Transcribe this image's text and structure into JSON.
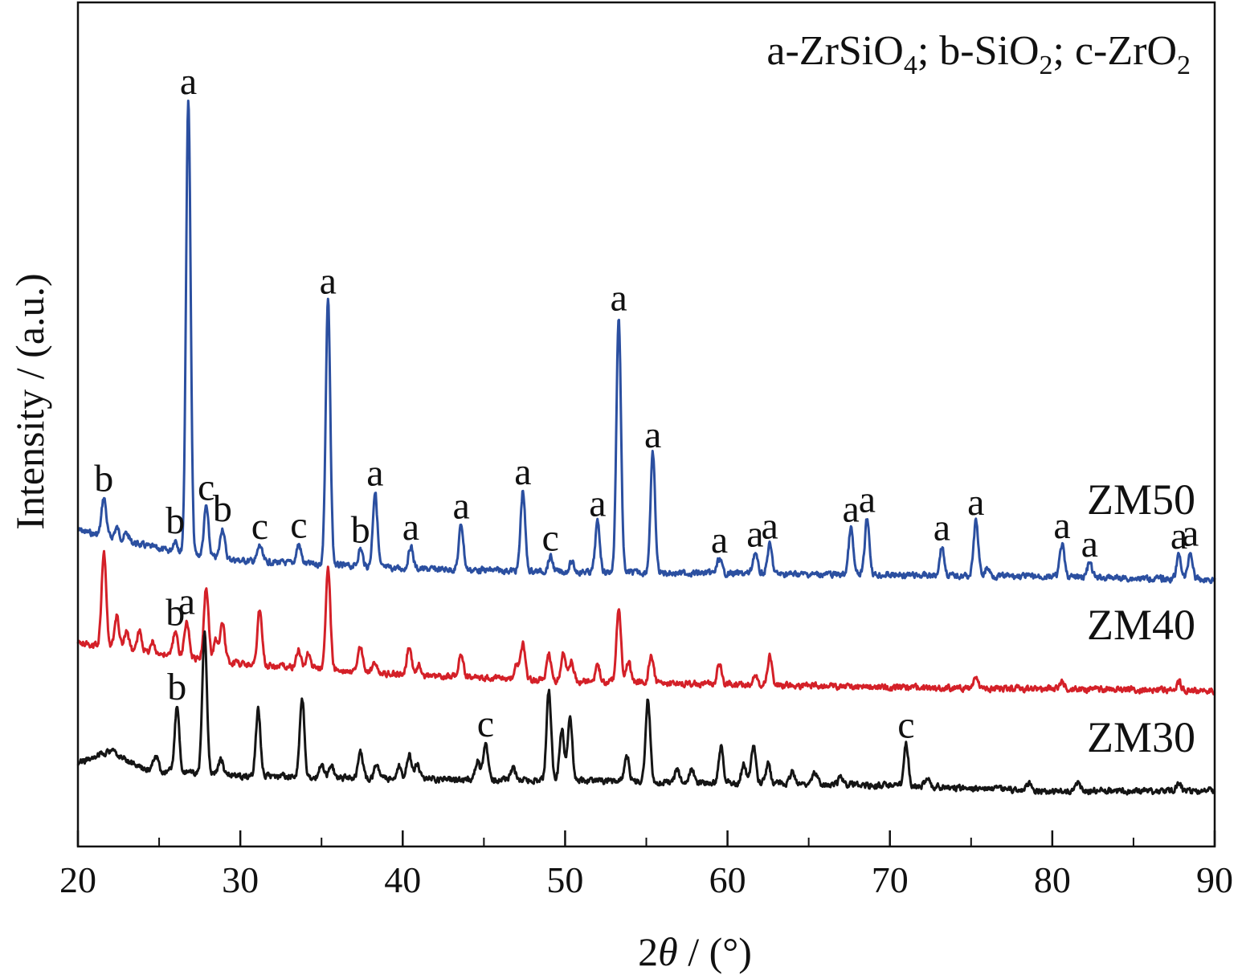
{
  "chart_data": {
    "type": "line",
    "legend_text": {
      "a_prefix": "a-ZrSiO",
      "a_sub": "4",
      "a_sep": "; ",
      "b_prefix": "b-SiO",
      "b_sub": "2",
      "b_sep": "; ",
      "c_prefix": "c-ZrO",
      "c_sub": "2"
    },
    "xlabel": {
      "prefix": "2",
      "symbol": "θ",
      "suffix": " / (°)"
    },
    "ylabel": "Intensity / (a.u.)",
    "xlim": [
      20,
      90
    ],
    "xticks": [
      20,
      30,
      40,
      50,
      60,
      70,
      80,
      90
    ],
    "xticks_minor": [
      25,
      35,
      45,
      55,
      65,
      75,
      85
    ],
    "y_ticks_shown": false,
    "grid": false,
    "series": [
      {
        "name": "ZM50",
        "color": "#2b4fa0",
        "baseline": [
          [
            20,
            660
          ],
          [
            26,
            688
          ],
          [
            30,
            698
          ],
          [
            40,
            708
          ],
          [
            50,
            712
          ],
          [
            60,
            714
          ],
          [
            70,
            716
          ],
          [
            80,
            718
          ],
          [
            90,
            722
          ]
        ],
        "peaks": [
          [
            21.6,
            48
          ],
          [
            22.4,
            14
          ],
          [
            23.0,
            10
          ],
          [
            26.0,
            16
          ],
          [
            26.8,
            565
          ],
          [
            27.9,
            62
          ],
          [
            28.9,
            38
          ],
          [
            31.2,
            20
          ],
          [
            33.6,
            24
          ],
          [
            35.4,
            330
          ],
          [
            37.4,
            22
          ],
          [
            38.3,
            94
          ],
          [
            40.5,
            28
          ],
          [
            43.6,
            56
          ],
          [
            47.4,
            100
          ],
          [
            49.1,
            18
          ],
          [
            50.4,
            12
          ],
          [
            52.0,
            62
          ],
          [
            53.3,
            318
          ],
          [
            55.4,
            148
          ],
          [
            59.5,
            18
          ],
          [
            61.7,
            26
          ],
          [
            62.6,
            36
          ],
          [
            67.6,
            58
          ],
          [
            68.6,
            70
          ],
          [
            73.2,
            36
          ],
          [
            75.3,
            68
          ],
          [
            76.0,
            10
          ],
          [
            80.6,
            40
          ],
          [
            82.3,
            18
          ],
          [
            87.8,
            30
          ],
          [
            88.5,
            34
          ]
        ],
        "peak_labels": [
          [
            21.6,
            "b"
          ],
          [
            26.0,
            "b"
          ],
          [
            26.8,
            "a"
          ],
          [
            27.9,
            "c"
          ],
          [
            28.9,
            "b"
          ],
          [
            31.2,
            "c"
          ],
          [
            33.6,
            "c"
          ],
          [
            35.4,
            "a"
          ],
          [
            37.4,
            "b"
          ],
          [
            38.3,
            "a"
          ],
          [
            40.5,
            "a"
          ],
          [
            43.6,
            "a"
          ],
          [
            47.4,
            "a"
          ],
          [
            49.1,
            "c"
          ],
          [
            52.0,
            "a"
          ],
          [
            53.3,
            "a"
          ],
          [
            55.4,
            "a"
          ],
          [
            59.5,
            "a"
          ],
          [
            61.7,
            "a"
          ],
          [
            62.6,
            "a"
          ],
          [
            67.6,
            "a"
          ],
          [
            68.6,
            "a"
          ],
          [
            73.2,
            "a"
          ],
          [
            75.3,
            "a"
          ],
          [
            80.6,
            "a"
          ],
          [
            82.3,
            "a"
          ],
          [
            87.8,
            "a"
          ],
          [
            88.5,
            "a"
          ]
        ]
      },
      {
        "name": "ZM40",
        "color": "#d42028",
        "baseline": [
          [
            20,
            800
          ],
          [
            24,
            812
          ],
          [
            30,
            826
          ],
          [
            40,
            840
          ],
          [
            50,
            848
          ],
          [
            60,
            852
          ],
          [
            70,
            856
          ],
          [
            80,
            858
          ],
          [
            90,
            860
          ]
        ],
        "peaks": [
          [
            21.6,
            118
          ],
          [
            22.4,
            40
          ],
          [
            23.0,
            22
          ],
          [
            23.8,
            26
          ],
          [
            24.6,
            14
          ],
          [
            26.0,
            30
          ],
          [
            26.7,
            46
          ],
          [
            27.9,
            90
          ],
          [
            28.5,
            26
          ],
          [
            28.9,
            48
          ],
          [
            31.2,
            70
          ],
          [
            33.6,
            22
          ],
          [
            34.2,
            18
          ],
          [
            35.4,
            128
          ],
          [
            37.4,
            32
          ],
          [
            38.3,
            14
          ],
          [
            40.4,
            36
          ],
          [
            41.0,
            14
          ],
          [
            43.6,
            28
          ],
          [
            47.0,
            16
          ],
          [
            47.4,
            44
          ],
          [
            49.0,
            32
          ],
          [
            49.9,
            36
          ],
          [
            50.4,
            24
          ],
          [
            52.0,
            20
          ],
          [
            53.3,
            90
          ],
          [
            53.9,
            26
          ],
          [
            55.3,
            34
          ],
          [
            59.5,
            26
          ],
          [
            61.7,
            14
          ],
          [
            62.6,
            36
          ],
          [
            75.3,
            14
          ],
          [
            80.6,
            10
          ],
          [
            87.8,
            10
          ]
        ],
        "peak_labels": [
          [
            26.0,
            "b"
          ],
          [
            26.7,
            "a"
          ]
        ]
      },
      {
        "name": "ZM30",
        "color": "#151515",
        "baseline": [
          [
            20,
            950
          ],
          [
            22,
            935
          ],
          [
            24,
            958
          ],
          [
            30,
            966
          ],
          [
            40,
            970
          ],
          [
            50,
            972
          ],
          [
            60,
            975
          ],
          [
            70,
            978
          ],
          [
            80,
            985
          ],
          [
            90,
            985
          ]
        ],
        "peaks": [
          [
            24.8,
            18
          ],
          [
            26.1,
            82
          ],
          [
            27.8,
            178
          ],
          [
            28.8,
            20
          ],
          [
            31.1,
            82
          ],
          [
            33.8,
            100
          ],
          [
            35.0,
            18
          ],
          [
            35.6,
            16
          ],
          [
            37.4,
            32
          ],
          [
            38.4,
            20
          ],
          [
            39.8,
            16
          ],
          [
            40.4,
            30
          ],
          [
            40.9,
            20
          ],
          [
            44.6,
            24
          ],
          [
            45.1,
            46
          ],
          [
            46.8,
            14
          ],
          [
            49.0,
            112
          ],
          [
            49.8,
            64
          ],
          [
            50.3,
            82
          ],
          [
            53.8,
            34
          ],
          [
            55.1,
            102
          ],
          [
            56.9,
            16
          ],
          [
            57.8,
            16
          ],
          [
            59.6,
            46
          ],
          [
            61.0,
            24
          ],
          [
            61.6,
            48
          ],
          [
            62.5,
            24
          ],
          [
            64.0,
            16
          ],
          [
            65.4,
            14
          ],
          [
            67.0,
            10
          ],
          [
            71.0,
            52
          ],
          [
            72.3,
            12
          ],
          [
            78.6,
            10
          ],
          [
            81.6,
            10
          ],
          [
            87.8,
            10
          ]
        ],
        "peak_labels": [
          [
            26.1,
            "b"
          ],
          [
            45.1,
            "c"
          ],
          [
            71.0,
            "c"
          ]
        ]
      }
    ]
  }
}
